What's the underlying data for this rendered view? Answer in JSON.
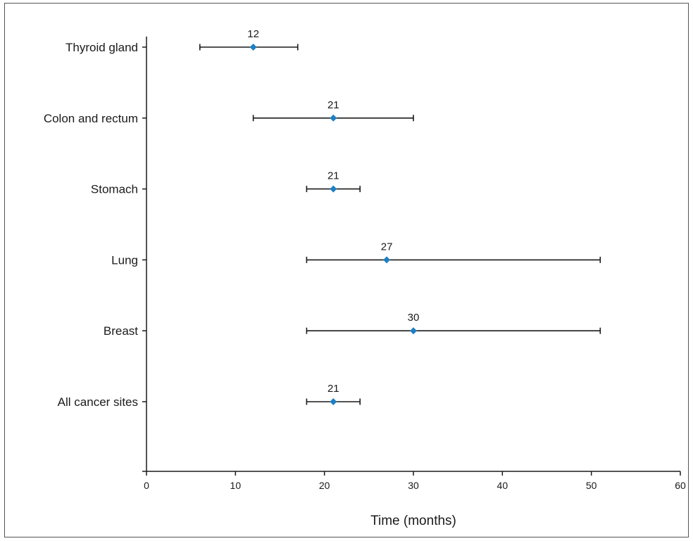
{
  "chart_data": {
    "type": "scatter",
    "title": "",
    "xlabel": "Time (months)",
    "ylabel": "",
    "xlim": [
      0,
      60
    ],
    "xticks": [
      0,
      10,
      20,
      30,
      40,
      50,
      60
    ],
    "grid": false,
    "categories": [
      "Thyroid gland",
      "Colon and rectum",
      "Stomach",
      "Lung",
      "Breast",
      "All cancer sites"
    ],
    "series": [
      {
        "values": [
          12,
          21,
          21,
          27,
          30,
          21
        ],
        "lower": [
          6,
          12,
          18,
          18,
          18,
          18
        ],
        "upper": [
          17,
          30,
          24,
          51,
          51,
          24
        ],
        "labels": [
          "12",
          "21",
          "21",
          "27",
          "30",
          "21"
        ],
        "color": "#1f7fc4"
      }
    ]
  }
}
